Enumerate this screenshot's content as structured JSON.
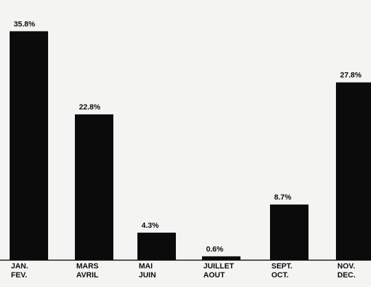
{
  "chart_data": {
    "type": "bar",
    "categories": [
      [
        "JAN.",
        "FEV."
      ],
      [
        "MARS",
        "AVRIL"
      ],
      [
        "MAI",
        "JUIN"
      ],
      [
        "JUILLET",
        "AOUT"
      ],
      [
        "SEPT.",
        "OCT."
      ],
      [
        "NOV.",
        "DEC."
      ]
    ],
    "values": [
      35.8,
      22.8,
      4.3,
      0.6,
      8.7,
      27.8
    ],
    "value_labels": [
      "35.8%",
      "22.8%",
      "4.3%",
      "0.6%",
      "8.7%",
      "27.8%"
    ],
    "ylim": [
      0,
      40
    ],
    "grid": false,
    "legend": "none",
    "colors": {
      "bar": "#0b0b0b",
      "background": "#f4f4f2"
    }
  }
}
